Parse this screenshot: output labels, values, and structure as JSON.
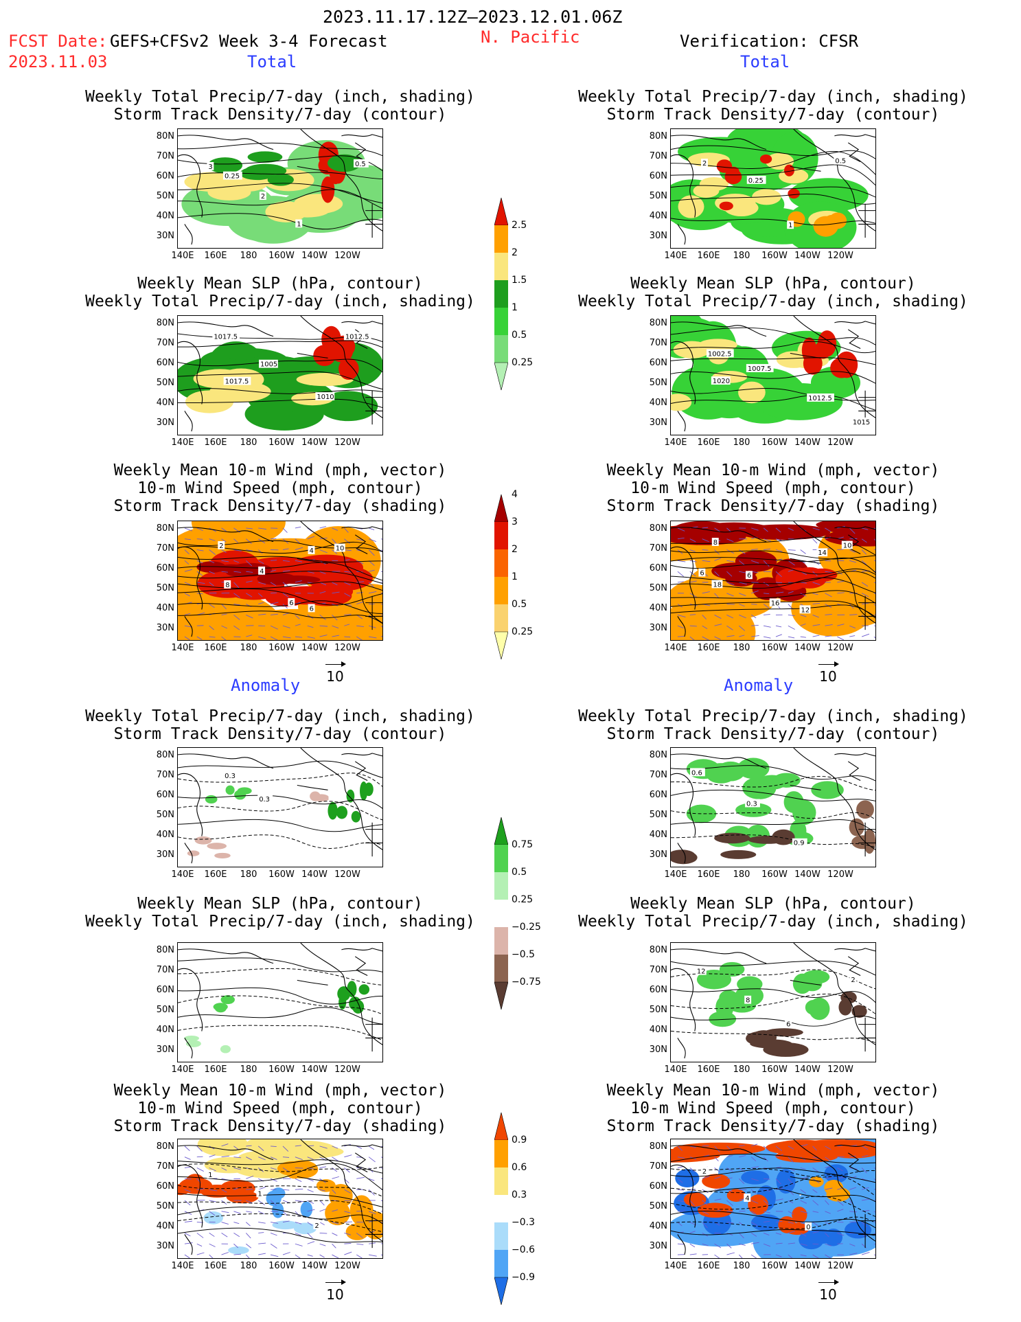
{
  "header": {
    "period": "2023.11.17.12Z—2023.12.01.06Z",
    "fcst_label": "FCST Date:",
    "fcst_model": "GEFS+CFSv2 Week 3-4 Forecast",
    "fcst_date": "2023.11.03",
    "region": "N. Pacific",
    "verification": "Verification: CFSR",
    "total_label": "Total",
    "anomaly_label": "Anomaly"
  },
  "panel_titles": {
    "precip_track": [
      "Weekly Total Precip/7-day (inch, shading)",
      "Storm Track Density/7-day (contour)"
    ],
    "slp_precip": [
      "Weekly Mean SLP (hPa, contour)",
      "Weekly Total Precip/7-day (inch, shading)"
    ],
    "wind_track": [
      "Weekly Mean 10-m Wind (mph, vector)",
      "10-m Wind Speed (mph, contour)",
      "Storm Track Density/7-day (shading)"
    ]
  },
  "axes": {
    "lat_ticks": [
      "80N",
      "70N",
      "60N",
      "50N",
      "40N",
      "30N"
    ],
    "lon_ticks": [
      "140E",
      "160E",
      "180",
      "160W",
      "140W",
      "120W"
    ]
  },
  "vector_ref": "10",
  "colors": {
    "precip": [
      "#b4f0b4",
      "#78dc78",
      "#37d237",
      "#1e9e1e",
      "#fae67d",
      "#ffa000",
      "#e11400"
    ],
    "track": [
      "#ffffaa",
      "#fad26e",
      "#ffa000",
      "#fa6400",
      "#e11400",
      "#a50000"
    ],
    "anom_precip": [
      "#5a3c32",
      "#8c6450",
      "#dcb4aa",
      "#ffffff",
      "#b4f0b4",
      "#50d250",
      "#1ea01e"
    ],
    "anom_track": [
      "#1e6ee6",
      "#50a5f5",
      "#aadcfa",
      "#ffffff",
      "#fae67d",
      "#ffa000",
      "#f04600"
    ]
  },
  "colorbars": {
    "precip_total": [
      "0.25",
      "0.5",
      "1",
      "1.5",
      "2",
      "2.5"
    ],
    "track_total": [
      "0.25",
      "0.5",
      "1",
      "2",
      "3",
      "4"
    ],
    "precip_anom": [
      "−0.75",
      "−0.5",
      "−0.25",
      "0.25",
      "0.5",
      "0.75"
    ],
    "track_anom": [
      "−0.9",
      "−0.6",
      "−0.3",
      "0.3",
      "0.6",
      "0.9"
    ]
  },
  "contour_labels": {
    "fc_total_precip": [
      "3",
      "2",
      "1",
      "0.5",
      "0.25"
    ],
    "ob_total_precip": [
      "2",
      "0.25",
      "1",
      "0.5"
    ],
    "fc_total_slp": [
      "1017.5",
      "1005",
      "1010",
      "1012.5",
      "1017.5"
    ],
    "ob_total_slp": [
      "1002.5",
      "1007.5",
      "1012.5",
      "1015",
      "1020"
    ],
    "fc_total_wind": [
      "2",
      "4",
      "6",
      "10",
      "8",
      "6",
      "4"
    ],
    "ob_total_wind": [
      "8",
      "6",
      "12",
      "10",
      "18",
      "16",
      "14",
      "6"
    ],
    "fc_anom_precip": [
      "0.3",
      "0.3"
    ],
    "ob_anom_precip": [
      "0.6",
      "0.3",
      "0.9"
    ],
    "fc_anom_wind": [
      "1",
      "1",
      "2"
    ],
    "ob_anom_slp": [
      "12",
      "8",
      "6",
      "2"
    ],
    "ob_anom_wind": [
      "2",
      "4",
      "0"
    ]
  }
}
